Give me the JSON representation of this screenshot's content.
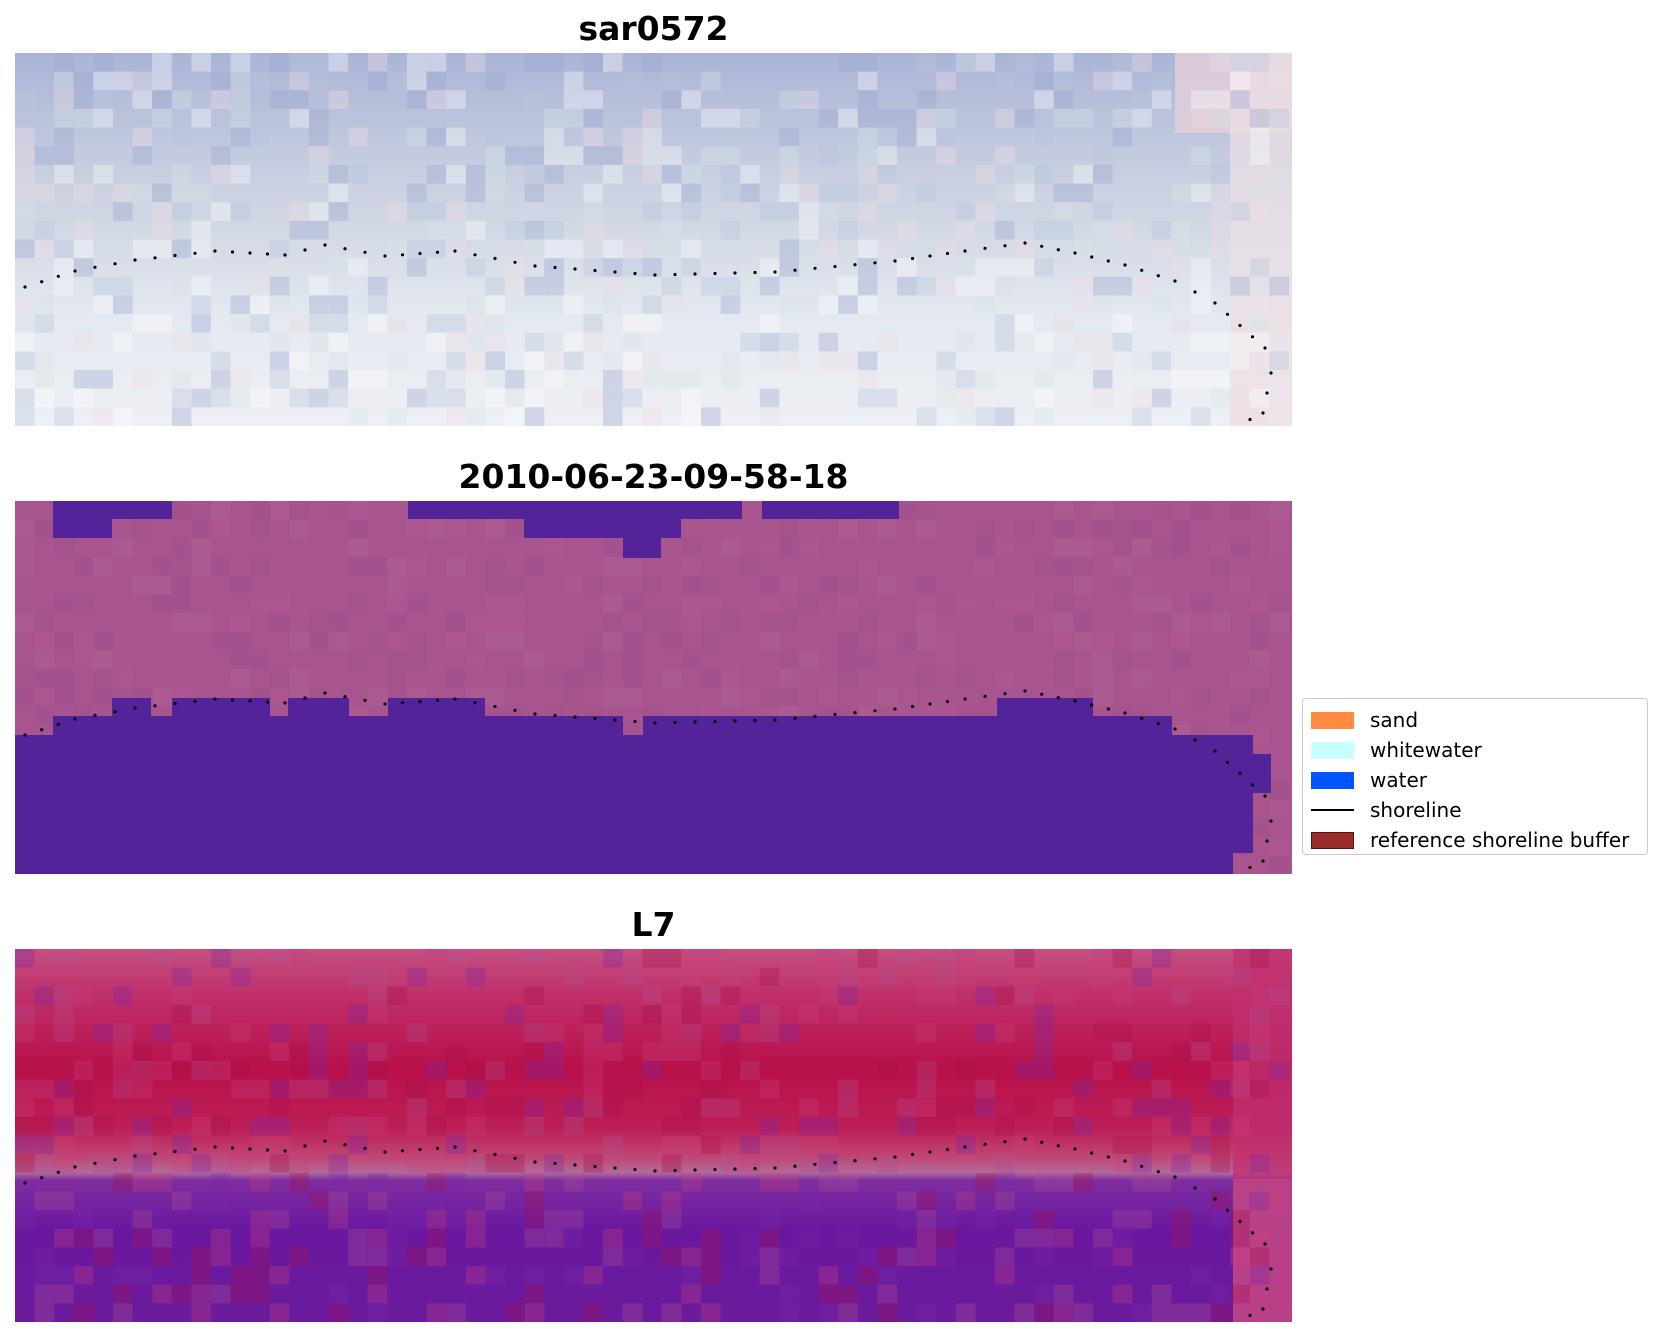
{
  "panels": [
    {
      "title": "sar0572"
    },
    {
      "title": "2010-06-23-09-58-18"
    },
    {
      "title": "L7"
    }
  ],
  "legend": {
    "items": [
      {
        "label": "sand",
        "color": "#FF8C42"
      },
      {
        "label": "whitewater",
        "color": "#C8FFFF"
      },
      {
        "label": "water",
        "color": "#0055FF"
      },
      {
        "label": "shoreline",
        "color": "#000000"
      },
      {
        "label": "reference shoreline buffer",
        "color": "#9B2C2C"
      }
    ]
  }
}
